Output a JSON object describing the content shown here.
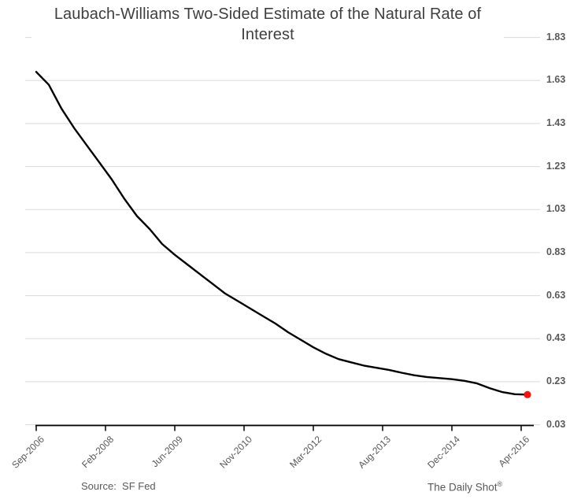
{
  "title": "Laubach-Williams Two-Sided Estimate of the Natural Rate of Interest",
  "footer": {
    "source_label": "Source:  SF Fed",
    "brand": "The Daily Shot",
    "registered_mark": "®"
  },
  "colors": {
    "line": "#000000",
    "marker": "#f6130b",
    "grid": "#d9d9d9",
    "axis": "#000000",
    "tick_label": "#595959",
    "title": "#3f3f3f"
  },
  "chart_data": {
    "type": "line",
    "title": "Laubach-Williams Two-Sided Estimate of the Natural Rate of Interest",
    "xlabel": "",
    "ylabel": "",
    "ylim": [
      0.03,
      1.83
    ],
    "y_tick_labels": [
      "1.83",
      "1.63",
      "1.43",
      "1.23",
      "1.03",
      "0.83",
      "0.63",
      "0.43",
      "0.23",
      "0.03"
    ],
    "x_tick_labels": [
      "Sep-2006",
      "Feb-2008",
      "Jun-2009",
      "Nov-2010",
      "Mar-2012",
      "Aug-2013",
      "Dec-2014",
      "Apr-2016"
    ],
    "grid": "horizontal",
    "legend": "none",
    "series": [
      {
        "name": "Natural rate estimate",
        "color": "#000000",
        "end_marker_color": "#f6130b",
        "points": [
          {
            "date": "Sep-2006",
            "value": 1.67
          },
          {
            "date": "Dec-2006",
            "value": 1.61
          },
          {
            "date": "Mar-2007",
            "value": 1.5
          },
          {
            "date": "Jun-2007",
            "value": 1.41
          },
          {
            "date": "Sep-2007",
            "value": 1.33
          },
          {
            "date": "Dec-2007",
            "value": 1.25
          },
          {
            "date": "Mar-2008",
            "value": 1.17
          },
          {
            "date": "Jun-2008",
            "value": 1.08
          },
          {
            "date": "Sep-2008",
            "value": 1.0
          },
          {
            "date": "Dec-2008",
            "value": 0.94
          },
          {
            "date": "Mar-2009",
            "value": 0.87
          },
          {
            "date": "Jun-2009",
            "value": 0.82
          },
          {
            "date": "Sep-2009",
            "value": 0.775
          },
          {
            "date": "Dec-2009",
            "value": 0.73
          },
          {
            "date": "Mar-2010",
            "value": 0.685
          },
          {
            "date": "Jun-2010",
            "value": 0.64
          },
          {
            "date": "Sep-2010",
            "value": 0.605
          },
          {
            "date": "Dec-2010",
            "value": 0.57
          },
          {
            "date": "Mar-2011",
            "value": 0.535
          },
          {
            "date": "Jun-2011",
            "value": 0.5
          },
          {
            "date": "Sep-2011",
            "value": 0.46
          },
          {
            "date": "Dec-2011",
            "value": 0.425
          },
          {
            "date": "Mar-2012",
            "value": 0.39
          },
          {
            "date": "Jun-2012",
            "value": 0.36
          },
          {
            "date": "Sep-2012",
            "value": 0.335
          },
          {
            "date": "Dec-2012",
            "value": 0.32
          },
          {
            "date": "Mar-2013",
            "value": 0.305
          },
          {
            "date": "Jun-2013",
            "value": 0.295
          },
          {
            "date": "Sep-2013",
            "value": 0.285
          },
          {
            "date": "Dec-2013",
            "value": 0.272
          },
          {
            "date": "Mar-2014",
            "value": 0.26
          },
          {
            "date": "Jun-2014",
            "value": 0.252
          },
          {
            "date": "Sep-2014",
            "value": 0.247
          },
          {
            "date": "Dec-2014",
            "value": 0.242
          },
          {
            "date": "Mar-2015",
            "value": 0.234
          },
          {
            "date": "Jun-2015",
            "value": 0.222
          },
          {
            "date": "Sep-2015",
            "value": 0.2
          },
          {
            "date": "Dec-2015",
            "value": 0.182
          },
          {
            "date": "Mar-2016",
            "value": 0.172
          },
          {
            "date": "Jun-2016",
            "value": 0.17
          }
        ]
      }
    ]
  }
}
